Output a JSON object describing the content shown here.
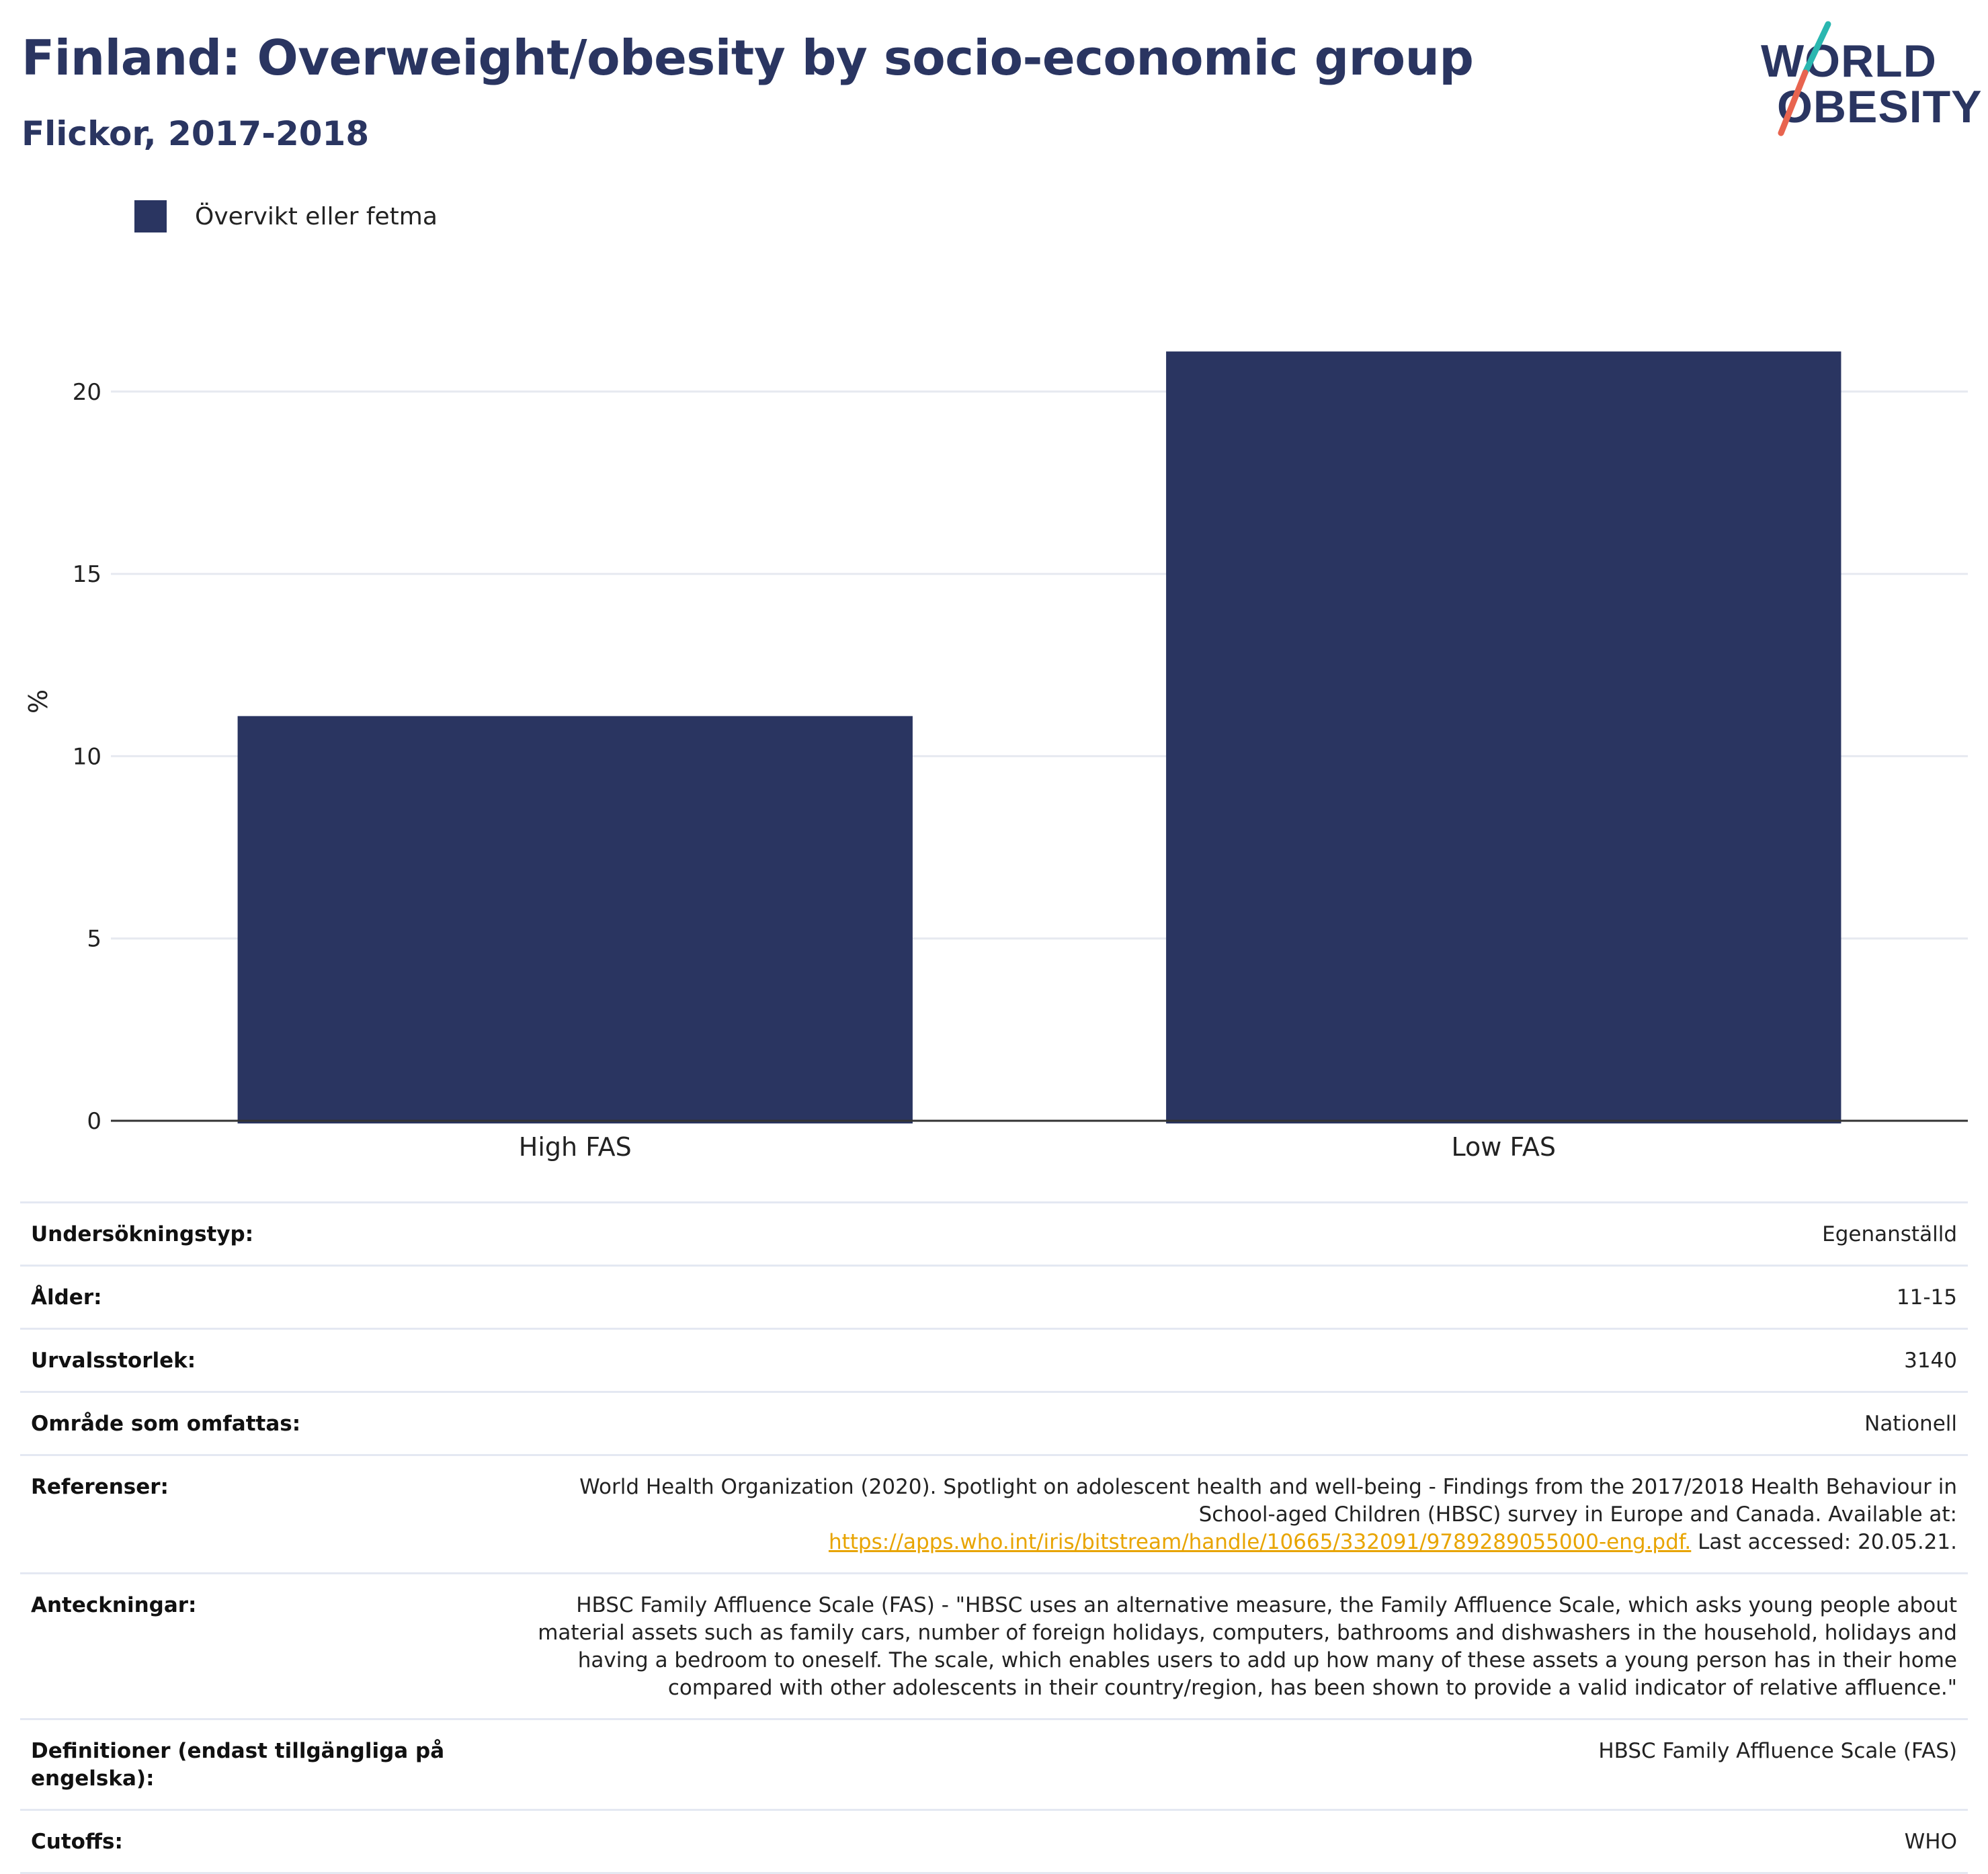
{
  "header": {
    "title": "Finland: Overweight/obesity by socio-economic group",
    "subtitle": "Flickor, 2017-2018"
  },
  "logo": {
    "line1": "WORLD",
    "line2": "OBESITY",
    "colors": {
      "text": "#2a3561",
      "slash_top": "#2ab7b0",
      "slash_bottom": "#e8644f"
    }
  },
  "chart_data": {
    "type": "bar",
    "title": "Finland: Overweight/obesity by socio-economic group",
    "subtitle": "Flickor, 2017-2018",
    "categories": [
      "High FAS",
      "Low FAS"
    ],
    "series": [
      {
        "name": "Övervikt eller fetma",
        "values": [
          11.1,
          21.1
        ],
        "color": "#2a3561"
      }
    ],
    "xlabel": "",
    "ylabel": "%",
    "ylim": [
      0,
      23
    ],
    "yticks": [
      0,
      5,
      10,
      15,
      20
    ],
    "grid": true,
    "legend": "top-left"
  },
  "meta": {
    "survey_type": {
      "label": "Undersökningstyp:",
      "value": "Egenanställd"
    },
    "age": {
      "label": "Ålder:",
      "value": "11-15"
    },
    "sample_size": {
      "label": "Urvalsstorlek:",
      "value": "3140"
    },
    "area": {
      "label": "Område som omfattas:",
      "value": "Nationell"
    },
    "references": {
      "label": "Referenser:",
      "line1": "World Health Organization (2020). Spotlight on adolescent health and well-being - Findings from the 2017/2018 Health Behaviour in",
      "line2": "School-aged Children (HBSC) survey in Europe and Canada. Available at:",
      "link": "https://apps.who.int/iris/bitstream/handle/10665/332091/9789289055000-eng.pdf.",
      "suffix": " Last accessed: 20.05.21."
    },
    "notes": {
      "label": "Anteckningar:",
      "line1": "HBSC Family Affluence Scale (FAS) - \"HBSC uses an alternative measure, the Family Affluence Scale, which asks young people about",
      "line2": "material assets such as family cars, number of foreign holidays, computers, bathrooms and dishwashers in the household, holidays and",
      "line3": "having a bedroom to oneself. The scale, which enables users to add up how many of these assets a young person has in their home",
      "line4": "compared with other adolescents in their country/region, has been shown to provide a valid indicator of relative affluence.\""
    },
    "definitions": {
      "label_line1": "Definitioner (endast tillgängliga på",
      "label_line2": "engelska):",
      "value": "HBSC Family Affluence Scale (FAS)"
    },
    "cutoffs": {
      "label": "Cutoffs:",
      "value": "WHO"
    }
  }
}
